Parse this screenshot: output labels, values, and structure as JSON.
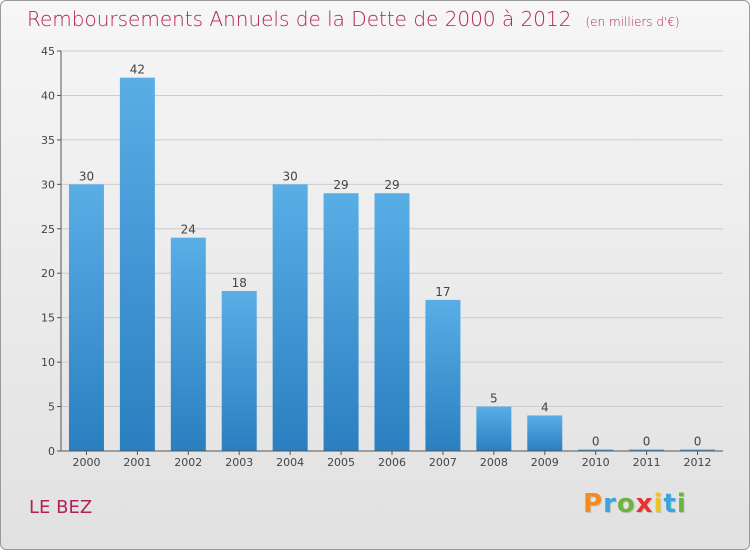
{
  "header": {
    "title": "Remboursements Annuels de la Dette de 2000 à 2012",
    "subtitle": "(en milliers d'€)"
  },
  "footer": {
    "city": "LE BEZ",
    "logo_text": "Proxiti",
    "logo_colors": [
      "#f28c1e",
      "#3aa5dc",
      "#6db33f",
      "#e8312d",
      "#f2c31e",
      "#3aa5dc",
      "#6db33f"
    ]
  },
  "colors": {
    "title": "#b2205a",
    "bar_top": "#5aaee6",
    "bar_bottom": "#2a7fc0",
    "grid": "#cccccc",
    "axis": "#555555"
  },
  "chart_data": {
    "type": "bar",
    "categories": [
      "2000",
      "2001",
      "2002",
      "2003",
      "2004",
      "2005",
      "2006",
      "2007",
      "2008",
      "2009",
      "2010",
      "2011",
      "2012"
    ],
    "values": [
      30,
      42,
      24,
      18,
      30,
      29,
      29,
      17,
      5,
      4,
      0,
      0,
      0
    ],
    "data_labels": [
      "30",
      "42",
      "24",
      "18",
      "30",
      "29",
      "29",
      "17",
      "5",
      "4",
      "0",
      "0",
      "0"
    ],
    "ylim": [
      0,
      45
    ],
    "yticks": [
      0,
      5,
      10,
      15,
      20,
      25,
      30,
      35,
      40,
      45
    ],
    "grid": true
  }
}
